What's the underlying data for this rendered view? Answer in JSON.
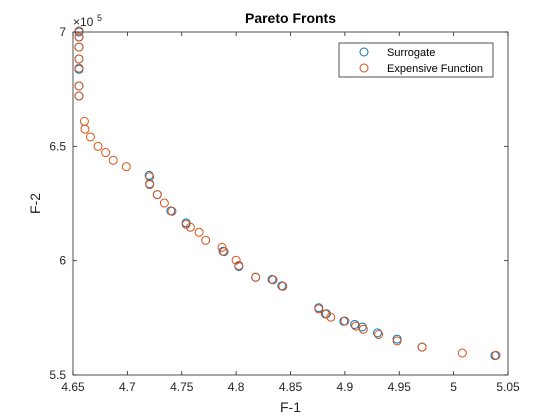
{
  "chart_data": {
    "type": "scatter",
    "title": "Pareto Fronts",
    "xlabel": "F-1",
    "ylabel": "F-2",
    "xlim": [
      4.65,
      5.05
    ],
    "ylim": [
      550000,
      700000
    ],
    "xticks": [
      4.65,
      4.7,
      4.75,
      4.8,
      4.85,
      4.9,
      4.95,
      5,
      5.05
    ],
    "xtick_labels": [
      "4.65",
      "4.7",
      "4.75",
      "4.8",
      "4.85",
      "4.9",
      "4.95",
      "5",
      "5.05"
    ],
    "yticks": [
      550000,
      600000,
      650000,
      700000
    ],
    "ytick_labels": [
      "5.5",
      "6",
      "6.5",
      "7"
    ],
    "y_exponent_label": "×10",
    "y_exponent_power": "5",
    "grid": false,
    "legend_position": "top-right",
    "series": [
      {
        "name": "Surrogate",
        "color": "#0072BD",
        "marker": "circle",
        "x": [
          4.6555,
          4.6555,
          4.6555,
          4.6555,
          4.6555,
          4.6555,
          4.6555,
          4.72,
          4.7205,
          4.7275,
          4.74,
          4.754,
          4.788,
          4.8025,
          4.818,
          4.833,
          4.842,
          4.876,
          4.883,
          4.899,
          4.909,
          4.916,
          4.93,
          4.948,
          4.971,
          5.038
        ],
        "y": [
          697800,
          693400,
          688200,
          683700,
          676400,
          672000,
          700000,
          637300,
          633600,
          628900,
          621800,
          616500,
          604100,
          597500,
          592700,
          591800,
          589000,
          579400,
          576800,
          573500,
          572100,
          571000,
          568400,
          565700,
          562200,
          558500
        ]
      },
      {
        "name": "Expensive Function",
        "color": "#D95319",
        "marker": "circle",
        "x": [
          4.6555,
          4.6555,
          4.6555,
          4.6555,
          4.6555,
          4.6555,
          4.6555,
          4.6605,
          4.661,
          4.666,
          4.673,
          4.68,
          4.687,
          4.699,
          4.7205,
          4.7205,
          4.7275,
          4.734,
          4.741,
          4.754,
          4.758,
          4.766,
          4.772,
          4.787,
          4.789,
          4.8,
          4.8025,
          4.818,
          4.834,
          4.843,
          4.876,
          4.882,
          4.887,
          4.9,
          4.91,
          4.917,
          4.931,
          4.948,
          4.971,
          5.008,
          5.039
        ],
        "y": [
          700500,
          697800,
          693400,
          688200,
          684200,
          676400,
          672000,
          660900,
          657500,
          654100,
          650000,
          647300,
          643900,
          641100,
          636700,
          633300,
          628900,
          625200,
          621600,
          615900,
          614600,
          612400,
          608900,
          605800,
          603900,
          600200,
          597900,
          592800,
          591600,
          588800,
          578900,
          576700,
          575300,
          573600,
          571400,
          570000,
          567700,
          564900,
          562200,
          559600,
          558600
        ]
      }
    ]
  }
}
